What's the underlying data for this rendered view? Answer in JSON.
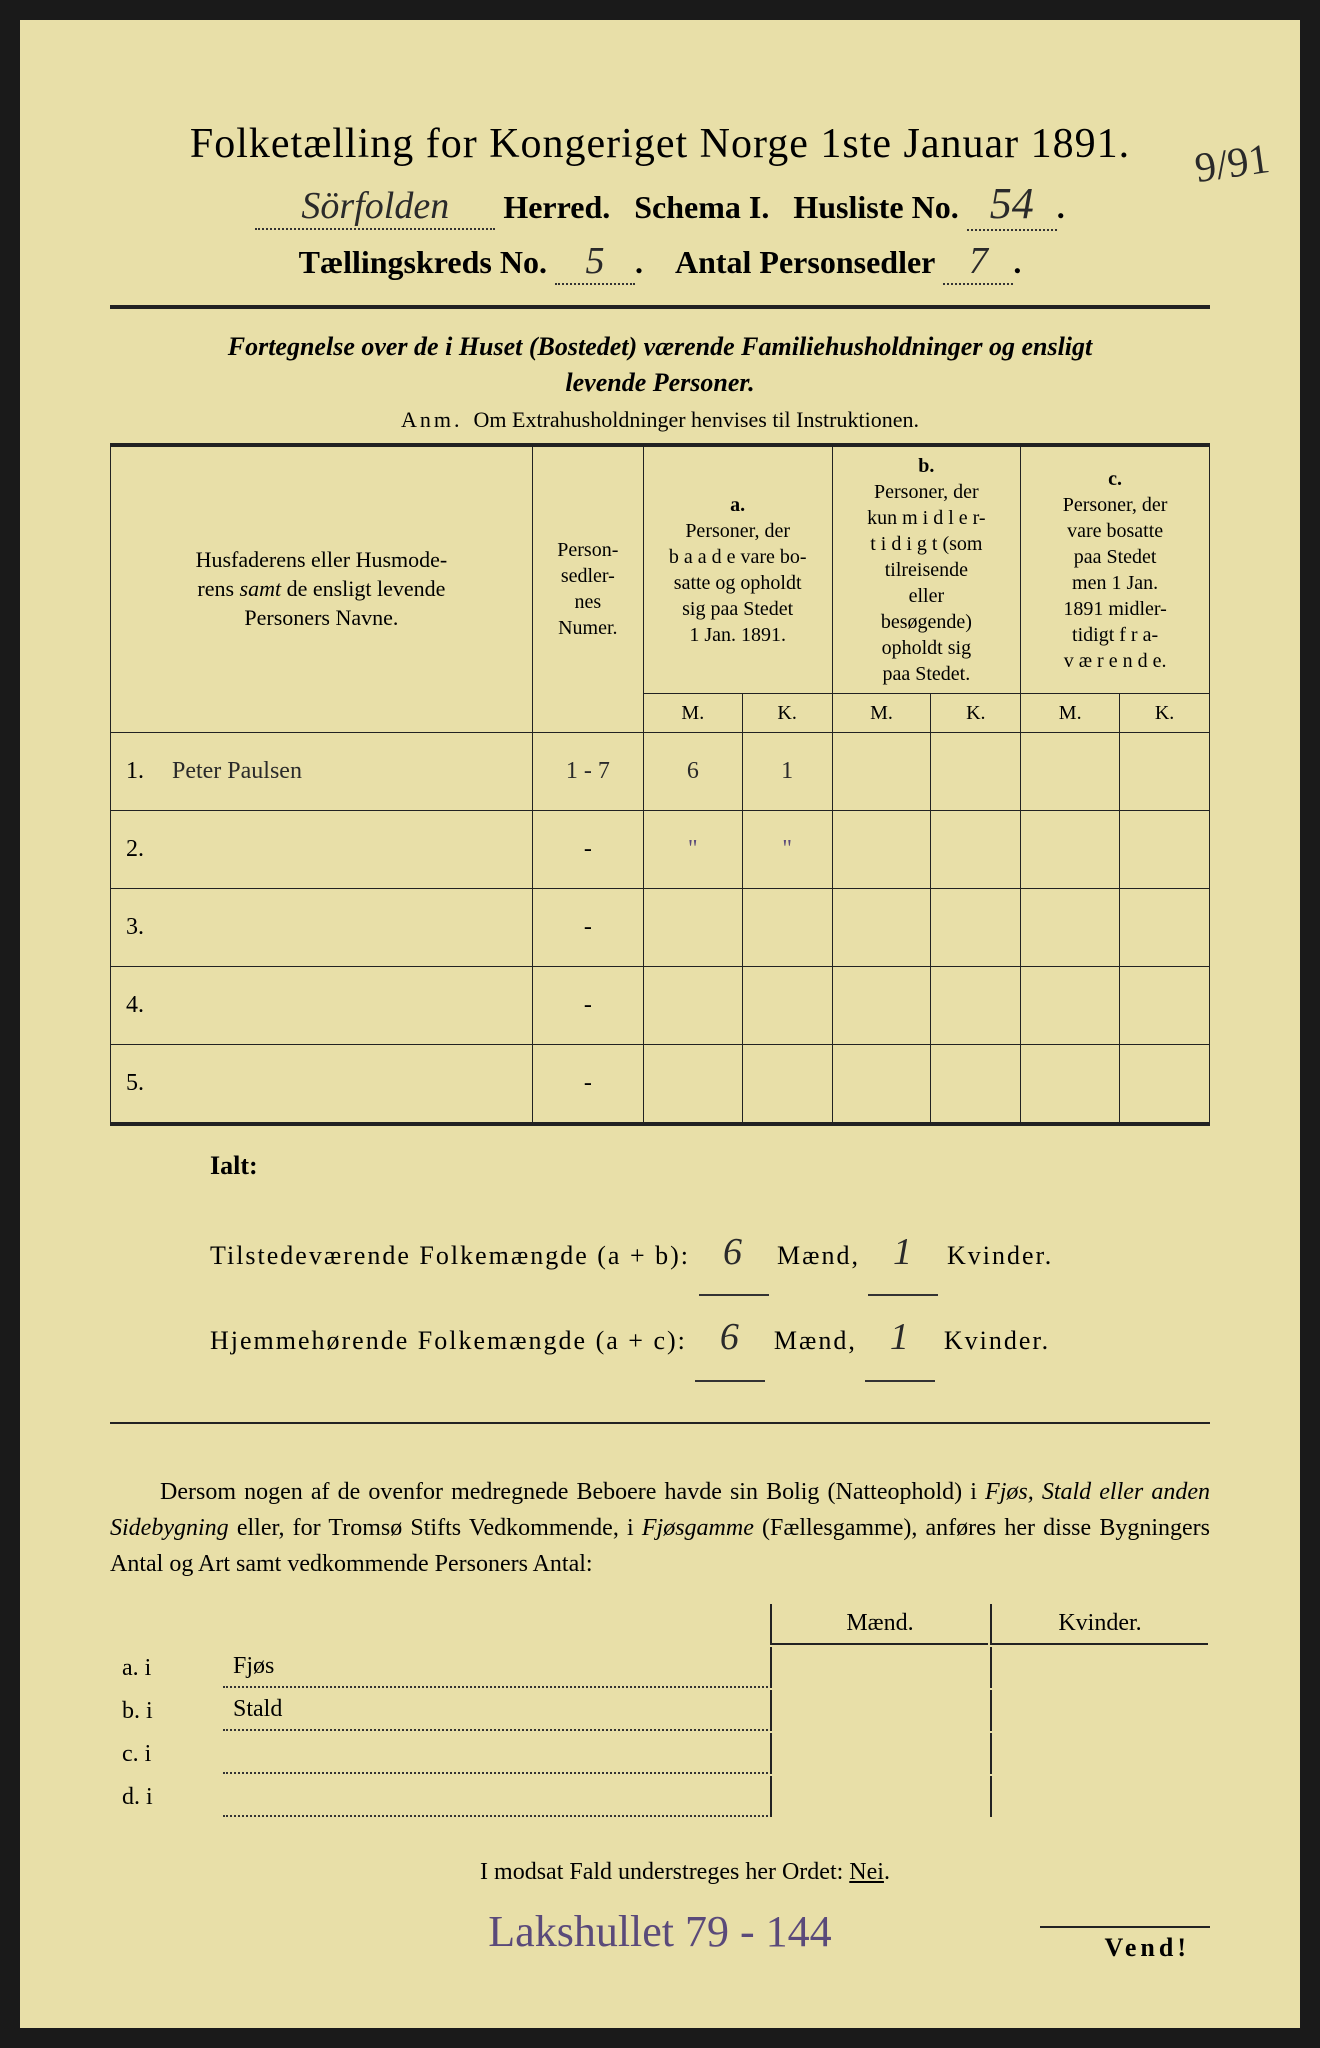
{
  "header": {
    "title": "Folketælling for Kongeriget Norge 1ste Januar 1891.",
    "herred_value": "Sörfolden",
    "herred_label": "Herred.",
    "schema": "Schema I.",
    "husliste_label": "Husliste No.",
    "husliste_value": "54",
    "margin_note": "9/91",
    "kreds_label": "Tællingskreds No.",
    "kreds_value": "5",
    "personsedler_label": "Antal Personsedler",
    "personsedler_value": "7"
  },
  "subtitle": {
    "line1": "Fortegnelse over de i Huset (Bostedet) værende Familiehusholdninger og ensligt",
    "line2": "levende Personer.",
    "anm": "Anm.  Om Extrahusholdninger henvises til Instruktionen."
  },
  "table": {
    "col_name": "Husfaderens eller Husmoderens samt de ensligt levende Personers Navne.",
    "col_num": "Personsedler-nes Numer.",
    "col_a_label": "a.",
    "col_a": "Personer, der baade vare bosatte og opholdt sig paa Stedet 1 Jan. 1891.",
    "col_b_label": "b.",
    "col_b": "Personer, der kun midlertidigt (som tilreisende eller besøgende) opholdt sig paa Stedet.",
    "col_c_label": "c.",
    "col_c": "Personer, der vare bosatte paa Stedet men 1 Jan. 1891 midlertidigt fraværende.",
    "m": "M.",
    "k": "K.",
    "rows": [
      {
        "n": "1.",
        "name": "Peter Paulsen",
        "num": "1 - 7",
        "am": "6",
        "ak": "1",
        "bm": "",
        "bk": "",
        "cm": "",
        "ck": ""
      },
      {
        "n": "2.",
        "name": "",
        "num": "-",
        "am": "\"",
        "ak": "\"",
        "bm": "",
        "bk": "",
        "cm": "",
        "ck": "",
        "purple": true
      },
      {
        "n": "3.",
        "name": "",
        "num": "-",
        "am": "",
        "ak": "",
        "bm": "",
        "bk": "",
        "cm": "",
        "ck": ""
      },
      {
        "n": "4.",
        "name": "",
        "num": "-",
        "am": "",
        "ak": "",
        "bm": "",
        "bk": "",
        "cm": "",
        "ck": ""
      },
      {
        "n": "5.",
        "name": "",
        "num": "-",
        "am": "",
        "ak": "",
        "bm": "",
        "bk": "",
        "cm": "",
        "ck": ""
      }
    ]
  },
  "totals": {
    "ialt": "Ialt:",
    "line1_label": "Tilstedeværende Folkemængde (a + b):",
    "line1_m": "6",
    "line1_k": "1",
    "line2_label": "Hjemmehørende Folkemængde (a + c):",
    "line2_m": "6",
    "line2_k": "1",
    "maend": "Mænd,",
    "kvinder": "Kvinder."
  },
  "paragraph": {
    "text1": "Dersom nogen af de ovenfor medregnede Beboere havde sin Bolig (Natteophold) i ",
    "i1": "Fjøs, Stald eller anden Sidebygning",
    "text2": " eller, for Tromsø Stifts Vedkommende, i ",
    "i2": "Fjøsgamme",
    "text3": " (Fællesgamme), anføres her disse Bygningers Antal og Art samt vedkommende Personers Antal:"
  },
  "bygning": {
    "maend": "Mænd.",
    "kvinder": "Kvinder.",
    "rows": [
      {
        "label": "a.  i",
        "name": "Fjøs"
      },
      {
        "label": "b.  i",
        "name": "Stald"
      },
      {
        "label": "c.  i",
        "name": ""
      },
      {
        "label": "d.  i",
        "name": ""
      }
    ]
  },
  "nei": "I modsat Fald understreges her Ordet: Nei.",
  "footer_note": "Lakshullet  79 - 144",
  "vend": "Vend!"
}
